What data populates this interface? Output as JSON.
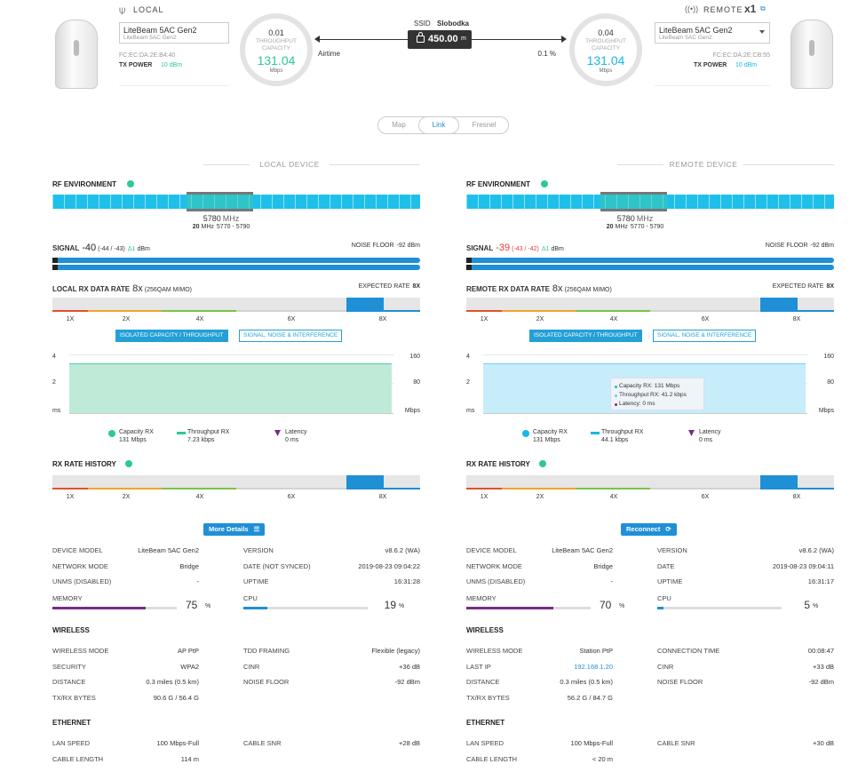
{
  "header": {
    "local": {
      "title": "LOCAL",
      "model": "LiteBeam 5AC Gen2",
      "model_sub": "LiteBeam 5AC Gen2",
      "mac": "FC:EC:DA:2E:B4:40",
      "tx_label": "TX POWER",
      "tx_value": "10 dBm"
    },
    "remote": {
      "title": "REMOTE",
      "count": "x1",
      "model": "LiteBeam 5AC Gen2",
      "model_sub": "LiteBeam 5AC Gen2",
      "mac": "FC:EC:DA:2E:CB:55",
      "tx_label": "TX POWER",
      "tx_value": "10 dBm"
    },
    "gauge_left": {
      "top": "0.01",
      "label1": "THROUGHPUT",
      "label2": "CAPACITY",
      "value": "131.04",
      "unit": "Mbps"
    },
    "gauge_right": {
      "top": "0.04",
      "label1": "THROUGHPUT",
      "label2": "CAPACITY",
      "value": "131.04",
      "unit": "Mbps"
    },
    "ssid_label": "SSID",
    "ssid": "Slobodka",
    "distance": "450.00",
    "distance_unit": "m",
    "airtime_label": "Airtime",
    "airtime_value": "0.1",
    "airtime_unit": "%"
  },
  "view_tabs": [
    "Map",
    "Link",
    "Fresnel"
  ],
  "colors": {
    "accent": "#1f8fd6",
    "teal": "#2ec98f",
    "purple": "#7a2a8a",
    "red": "#e03b3b",
    "cyan": "#16b8e6"
  },
  "local": {
    "section": "LOCAL DEVICE",
    "rf_label": "RF ENVIRONMENT",
    "freq": "5780",
    "freq_unit": "MHz",
    "bw": "20",
    "bw_unit": "MHz",
    "range": "5770 - 5790",
    "signal_label": "SIGNAL",
    "signal": "-40",
    "signal_chains": "(-44 / -43)",
    "signal_delta": "Δ1",
    "signal_unit": "dBm",
    "noise_label": "NOISE FLOOR",
    "noise": "-92 dBm",
    "rx_label": "LOCAL RX DATA RATE",
    "rx_rate": "8x",
    "rx_mod": "(256QAM MIMO)",
    "expected_label": "EXPECTED RATE",
    "expected": "8X",
    "tab1": "ISOLATED CAPACITY / THROUGHPUT",
    "tab2": "SIGNAL, NOISE & INTERFERENCE",
    "y_left": [
      "4",
      "2",
      "ms"
    ],
    "y_right": [
      "160",
      "80",
      "Mbps"
    ],
    "legend": [
      {
        "name": "Capacity RX",
        "value": "131 Mbps"
      },
      {
        "name": "Throughput RX",
        "value": "7.23 kbps"
      },
      {
        "name": "Latency",
        "value": "0 ms"
      }
    ],
    "history_label": "RX RATE HISTORY",
    "action": "More Details",
    "stats_left": [
      [
        "DEVICE MODEL",
        "LiteBeam 5AC Gen2"
      ],
      [
        "NETWORK MODE",
        "Bridge"
      ],
      [
        "UNMS (DISABLED)",
        "-"
      ]
    ],
    "stats_right": [
      [
        "VERSION",
        "v8.6.2 (WA)"
      ],
      [
        "DATE (NOT SYNCED)",
        "2019-08-23 09:04:22"
      ],
      [
        "UPTIME",
        "16:31:28"
      ]
    ],
    "memory_label": "MEMORY",
    "memory": "75",
    "cpu_label": "CPU",
    "cpu": "19",
    "pct": "%",
    "wireless": "WIRELESS",
    "wl_left": [
      [
        "WIRELESS MODE",
        "AP PtP"
      ],
      [
        "SECURITY",
        "WPA2"
      ],
      [
        "DISTANCE",
        "0.3 miles (0.5 km)"
      ],
      [
        "TX/RX BYTES",
        "90.6 G / 56.4 G"
      ]
    ],
    "wl_right": [
      [
        "TDD FRAMING",
        "Flexible (legacy)"
      ],
      [
        "CINR",
        "+36 dB"
      ],
      [
        "NOISE FLOOR",
        "-92 dBm"
      ]
    ],
    "ethernet": "ETHERNET",
    "eth_left": [
      [
        "LAN SPEED",
        "100 Mbps-Full"
      ],
      [
        "CABLE LENGTH",
        "114 m"
      ]
    ],
    "eth_right": [
      [
        "CABLE SNR",
        "+28 dB"
      ]
    ]
  },
  "remote": {
    "section": "REMOTE DEVICE",
    "rf_label": "RF ENVIRONMENT",
    "freq": "5780",
    "freq_unit": "MHz",
    "bw": "20",
    "bw_unit": "MHz",
    "range": "5770 - 5790",
    "signal_label": "SIGNAL",
    "signal": "-39",
    "signal_chains": "(-43 / -42)",
    "signal_delta": "Δ1",
    "signal_unit": "dBm",
    "noise_label": "NOISE FLOOR",
    "noise": "-92 dBm",
    "rx_label": "REMOTE RX DATA RATE",
    "rx_rate": "8x",
    "rx_mod": "(256QAM MIMO)",
    "expected_label": "EXPECTED RATE",
    "expected": "8X",
    "tab1": "ISOLATED CAPACITY / THROUGHPUT",
    "tab2": "SIGNAL, NOISE & INTERFERENCE",
    "y_left": [
      "4",
      "2",
      "ms"
    ],
    "y_right": [
      "160",
      "80",
      "Mbps"
    ],
    "tooltip": [
      "Capacity RX: 131 Mbps",
      "Throughput RX: 41.2 kbps",
      "Latency: 0 ms"
    ],
    "legend": [
      {
        "name": "Capacity RX",
        "value": "131 Mbps"
      },
      {
        "name": "Throughput RX",
        "value": "44.1 kbps"
      },
      {
        "name": "Latency",
        "value": "0 ms"
      }
    ],
    "history_label": "RX RATE HISTORY",
    "action": "Reconnect",
    "stats_left": [
      [
        "DEVICE MODEL",
        "LiteBeam 5AC Gen2"
      ],
      [
        "NETWORK MODE",
        "Bridge"
      ],
      [
        "UNMS (DISABLED)",
        "-"
      ]
    ],
    "stats_right": [
      [
        "VERSION",
        "v8.6.2 (WA)"
      ],
      [
        "DATE",
        "2019-08-23 09:04:11"
      ],
      [
        "UPTIME",
        "16:31:17"
      ]
    ],
    "memory_label": "MEMORY",
    "memory": "70",
    "cpu_label": "CPU",
    "cpu": "5",
    "pct": "%",
    "wireless": "WIRELESS",
    "wl_left": [
      [
        "WIRELESS MODE",
        "Station PtP"
      ],
      [
        "LAST IP",
        "192.168.1.20"
      ],
      [
        "DISTANCE",
        "0.3 miles (0.5 km)"
      ],
      [
        "TX/RX BYTES",
        "56.2 G / 84.7 G"
      ]
    ],
    "wl_right": [
      [
        "CONNECTION TIME",
        "00:08:47"
      ],
      [
        "CINR",
        "+33 dB"
      ],
      [
        "NOISE FLOOR",
        "-92 dBm"
      ]
    ],
    "ethernet": "ETHERNET",
    "eth_left": [
      [
        "LAN SPEED",
        "100 Mbps-Full"
      ],
      [
        "CABLE LENGTH",
        "< 20 m"
      ]
    ],
    "eth_right": [
      [
        "CABLE SNR",
        "+30 dB"
      ]
    ]
  },
  "rate_ticks": [
    "1X",
    "2X",
    "4X",
    "6X",
    "8X"
  ]
}
